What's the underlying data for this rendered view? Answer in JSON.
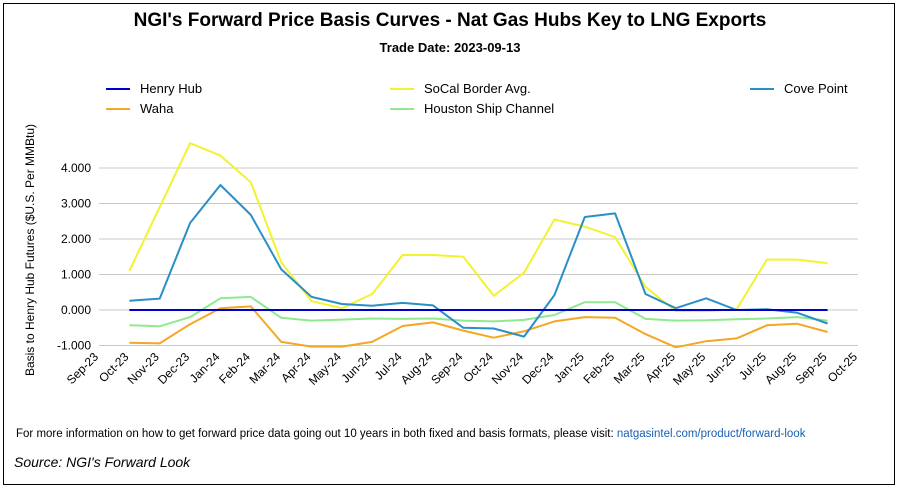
{
  "title": "NGI's Forward Price Basis Curves - Nat Gas Hubs Key to LNG Exports",
  "subtitle": "Trade Date: 2023-09-13",
  "footer": {
    "note": "For more information on how to get forward price data going out 10 years in both fixed and basis formats, please visit:",
    "link": "natgasintel.com/product/forward-look",
    "source": "Source: NGI's Forward Look"
  },
  "legend": [
    {
      "label": "Henry Hub",
      "color": "#0000cc"
    },
    {
      "label": "Waha",
      "color": "#f5a623"
    },
    {
      "label": "SoCal Border Avg.",
      "color": "#f2f230"
    },
    {
      "label": "Houston Ship Channel",
      "color": "#90e890"
    },
    {
      "label": "Cove Point",
      "color": "#2a8fc7"
    }
  ],
  "chart_data": {
    "type": "line",
    "title": "NGI's Forward Price Basis Curves - Nat Gas Hubs Key to LNG Exports",
    "ylabel": "Basis to Henry Hub Futures ($U.S. Per MMBtu)",
    "xlabel": "",
    "ylim": [
      -1.5,
      4.5
    ],
    "yticks": [
      "4.000",
      "3.000",
      "2.000",
      "1.000",
      "0.000",
      "-1.000"
    ],
    "ytick_values": [
      4,
      3,
      2,
      1,
      0,
      -1
    ],
    "grid": true,
    "legend_position": "top",
    "categories": [
      "Sep-23",
      "Oct-23",
      "Nov-23",
      "Dec-23",
      "Jan-24",
      "Feb-24",
      "Mar-24",
      "Apr-24",
      "May-24",
      "Jun-24",
      "Jul-24",
      "Aug-24",
      "Sep-24",
      "Oct-24",
      "Nov-24",
      "Dec-24",
      "Jan-25",
      "Feb-25",
      "Mar-25",
      "Apr-25",
      "May-25",
      "Jun-25",
      "Jul-25",
      "Aug-25",
      "Sep-25",
      "Oct-25"
    ],
    "series": [
      {
        "name": "Henry Hub",
        "color": "#0000cc",
        "values": [
          null,
          0,
          0,
          0,
          0,
          0,
          0,
          0,
          0,
          0,
          0,
          0,
          0,
          0,
          0,
          0,
          0,
          0,
          0,
          0,
          0,
          0,
          0,
          0,
          0,
          null
        ]
      },
      {
        "name": "Waha",
        "color": "#f5a623",
        "values": [
          null,
          -0.92,
          -0.94,
          -0.4,
          0.05,
          0.1,
          -0.9,
          -1.03,
          -1.03,
          -0.9,
          -0.45,
          -0.35,
          -0.58,
          -0.78,
          -0.6,
          -0.32,
          -0.2,
          -0.22,
          -0.68,
          -1.05,
          -0.88,
          -0.8,
          -0.43,
          -0.39,
          -0.62,
          null
        ]
      },
      {
        "name": "SoCal Border Avg.",
        "color": "#f2f230",
        "values": [
          null,
          1.1,
          2.9,
          4.7,
          4.35,
          3.6,
          1.35,
          0.25,
          0.05,
          0.45,
          1.55,
          1.55,
          1.5,
          0.4,
          1.05,
          2.55,
          2.35,
          2.05,
          0.65,
          -0.03,
          -0.03,
          0.02,
          1.42,
          1.42,
          1.32,
          null
        ]
      },
      {
        "name": "Houston Ship Channel",
        "color": "#90e890",
        "values": [
          null,
          -0.43,
          -0.46,
          -0.2,
          0.33,
          0.37,
          -0.22,
          -0.3,
          -0.27,
          -0.24,
          -0.25,
          -0.24,
          -0.3,
          -0.32,
          -0.28,
          -0.14,
          0.22,
          0.22,
          -0.25,
          -0.3,
          -0.29,
          -0.26,
          -0.24,
          -0.2,
          -0.3,
          null
        ]
      },
      {
        "name": "Cove Point",
        "color": "#2a8fc7",
        "values": [
          null,
          0.26,
          0.32,
          2.45,
          3.52,
          2.68,
          1.15,
          0.37,
          0.17,
          0.12,
          0.2,
          0.13,
          -0.5,
          -0.52,
          -0.75,
          0.42,
          2.62,
          2.72,
          0.45,
          0.05,
          0.33,
          0.0,
          0.02,
          -0.08,
          -0.38,
          null
        ]
      }
    ]
  }
}
